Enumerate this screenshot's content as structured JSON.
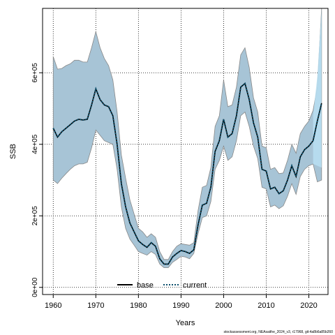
{
  "chart_data": {
    "type": "area",
    "title": "",
    "xlabel": "Years",
    "ylabel": "SSB",
    "xlim": [
      1957.5,
      2024.5
    ],
    "ylim": [
      -20000,
      780000
    ],
    "x_ticks": [
      1960,
      1970,
      1980,
      1990,
      2000,
      2010,
      2020
    ],
    "y_ticks": [
      0,
      200000,
      400000,
      600000
    ],
    "y_tick_labels": [
      "0e+00",
      "2e+05",
      "4e+05",
      "6e+05"
    ],
    "grid": true,
    "legend_position": "bottom-center",
    "legend": [
      {
        "label": "base",
        "style": "solid"
      },
      {
        "label": "current",
        "style": "dotted"
      }
    ],
    "colors": {
      "band_fill": "#a7c4d6",
      "band_edge": "#888888",
      "current_line": "#0b4f6c",
      "base_line": "#000000",
      "tail_fill": "#b9dff2"
    },
    "footer": "stockassessment.org, NEAsaithe_2024_v3, r17968, git:4a8b6a85b260",
    "series": [
      {
        "name": "current",
        "x": [
          1960,
          1961,
          1962,
          1963,
          1964,
          1965,
          1966,
          1967,
          1968,
          1969,
          1970,
          1971,
          1972,
          1973,
          1974,
          1975,
          1976,
          1977,
          1978,
          1979,
          1980,
          1981,
          1982,
          1983,
          1984,
          1985,
          1986,
          1987,
          1988,
          1989,
          1990,
          1991,
          1992,
          1993,
          1994,
          1995,
          1996,
          1997,
          1998,
          1999,
          2000,
          2001,
          2002,
          2003,
          2004,
          2005,
          2006,
          2007,
          2008,
          2009,
          2010,
          2011,
          2012,
          2013,
          2014,
          2015,
          2016,
          2017,
          2018,
          2019,
          2020,
          2021,
          2022,
          2023
        ],
        "y": [
          445000,
          420000,
          435000,
          445000,
          455000,
          465000,
          470000,
          468000,
          470000,
          510000,
          555000,
          525000,
          510000,
          505000,
          480000,
          400000,
          290000,
          225000,
          180000,
          155000,
          130000,
          120000,
          112000,
          125000,
          115000,
          80000,
          65000,
          65000,
          85000,
          95000,
          103000,
          100000,
          95000,
          105000,
          175000,
          230000,
          235000,
          280000,
          380000,
          410000,
          470000,
          420000,
          430000,
          480000,
          560000,
          570000,
          525000,
          460000,
          420000,
          330000,
          325000,
          275000,
          280000,
          262000,
          270000,
          300000,
          340000,
          310000,
          365000,
          385000,
          395000,
          410000,
          465000,
          515000
        ],
        "lower": [
          300000,
          290000,
          305000,
          318000,
          330000,
          340000,
          345000,
          345000,
          350000,
          390000,
          440000,
          425000,
          410000,
          405000,
          400000,
          330000,
          225000,
          165000,
          135000,
          118000,
          100000,
          95000,
          90000,
          100000,
          92000,
          65000,
          55000,
          55000,
          70000,
          78000,
          87000,
          85000,
          80000,
          95000,
          150000,
          195000,
          200000,
          240000,
          330000,
          355000,
          395000,
          355000,
          365000,
          410000,
          480000,
          490000,
          450000,
          395000,
          360000,
          280000,
          275000,
          225000,
          230000,
          220000,
          228000,
          255000,
          290000,
          260000,
          310000,
          330000,
          340000,
          345000,
          295000,
          300000
        ],
        "upper": [
          645000,
          610000,
          612000,
          620000,
          625000,
          635000,
          635000,
          630000,
          630000,
          670000,
          715000,
          670000,
          640000,
          620000,
          580000,
          490000,
          370000,
          305000,
          245000,
          205000,
          165000,
          155000,
          140000,
          150000,
          140000,
          100000,
          78000,
          78000,
          100000,
          115000,
          122000,
          120000,
          118000,
          125000,
          215000,
          280000,
          285000,
          335000,
          450000,
          480000,
          580000,
          505000,
          510000,
          560000,
          650000,
          670000,
          615000,
          530000,
          490000,
          395000,
          390000,
          330000,
          335000,
          318000,
          320000,
          355000,
          400000,
          375000,
          430000,
          450000,
          465000,
          495000,
          560000,
          780000
        ]
      }
    ],
    "tail_band": {
      "x": [
        2021,
        2022,
        2023
      ],
      "lower": [
        345000,
        340000,
        335000
      ],
      "upper": [
        480000,
        590000,
        780000
      ]
    }
  }
}
